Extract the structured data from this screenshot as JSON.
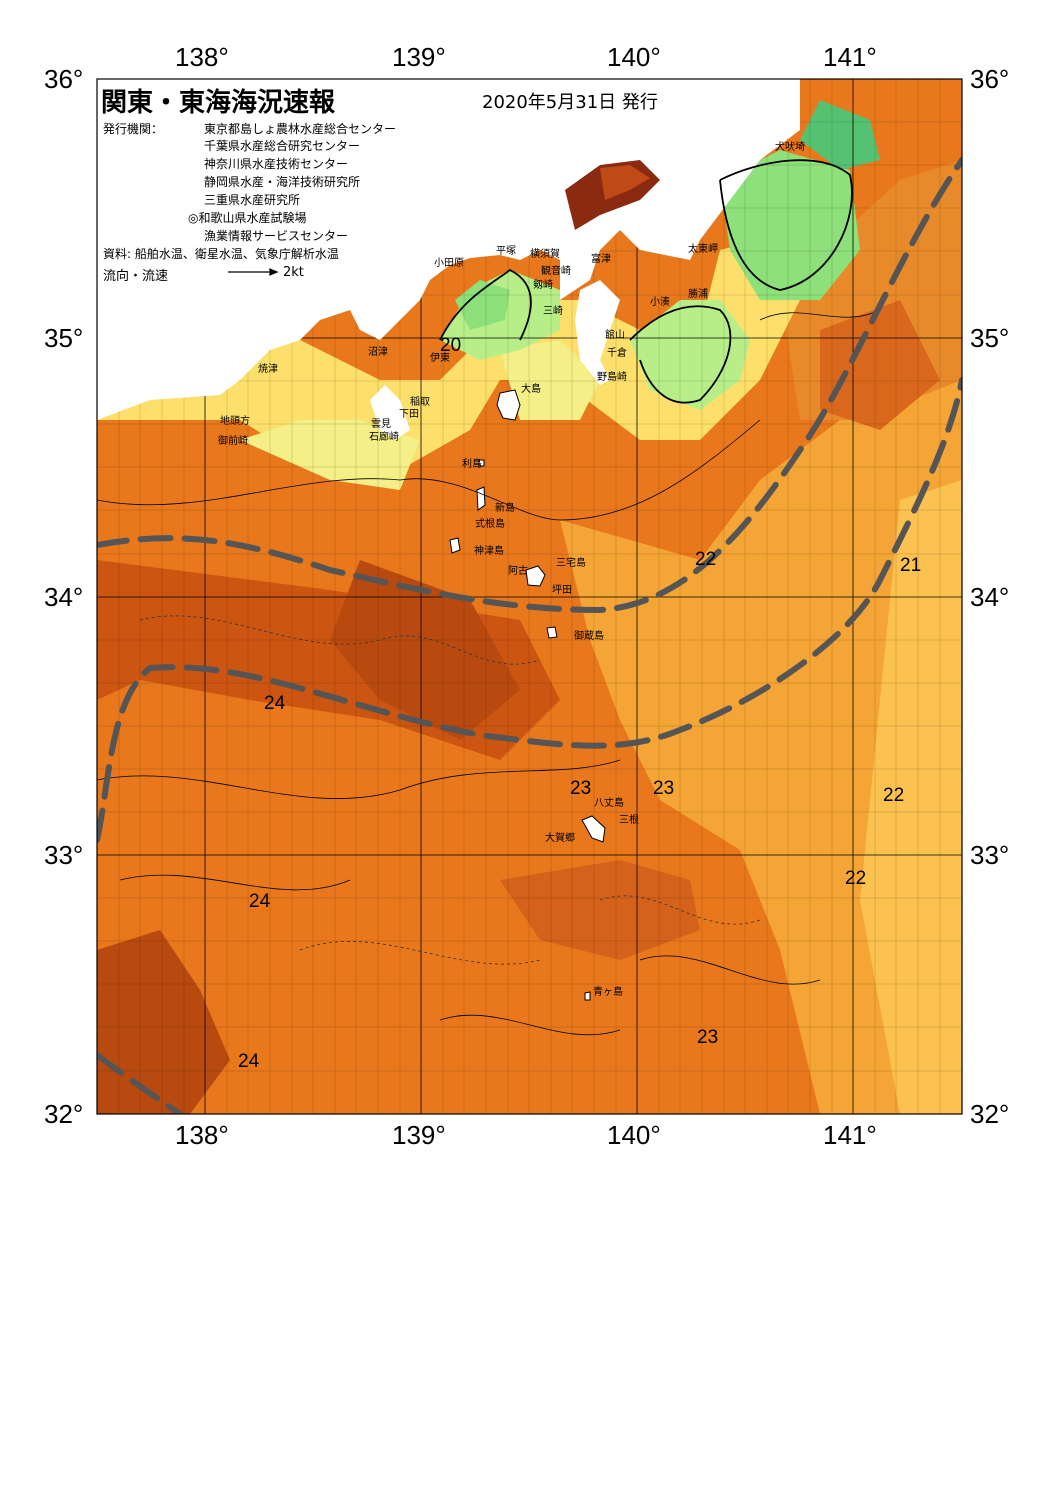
{
  "header": {
    "title": "関東・東海海況速報",
    "issue_date": "2020年5月31日 発行",
    "agency_label": "発行機関：",
    "agencies": [
      "東京都島しょ農林水産総合センター",
      "千葉県水産総合研究センター",
      "神奈川県水産技術センター",
      "静岡県水産・海洋技術研究所",
      "三重県水産研究所",
      "◎和歌山県水産試験場",
      "漁業情報サービスセンター"
    ],
    "source": "資料: 船舶水温、衛星水温、気象庁解析水温",
    "flow_label": "流向・流速",
    "flow_scale": "2kt"
  },
  "axes": {
    "lon_top": [
      "138°",
      "139°",
      "140°",
      "141°"
    ],
    "lon_bottom": [
      "138°",
      "139°",
      "140°",
      "141°"
    ],
    "lat_left": [
      "36°",
      "35°",
      "34°",
      "33°",
      "32°"
    ],
    "lat_right": [
      "36°",
      "35°",
      "34°",
      "33°",
      "32°"
    ]
  },
  "places": [
    "犬吠埼",
    "太東岬",
    "勝浦",
    "小湊",
    "富津",
    "館山",
    "千倉",
    "野島崎",
    "平塚",
    "横須賀",
    "観音崎",
    "剱崎",
    "三崎",
    "小田原",
    "沼津",
    "伊東",
    "焼津",
    "稲取",
    "下田",
    "雲見",
    "石廊崎",
    "地頭方",
    "御前崎",
    "大島",
    "利島",
    "新島",
    "式根島",
    "神津島",
    "三宅島",
    "阿古",
    "坪田",
    "御蔵島",
    "八丈島",
    "三根",
    "大賀郷",
    "青ヶ島"
  ],
  "isotherms": [
    "22",
    "21",
    "24",
    "23",
    "23",
    "22",
    "24",
    "22",
    "24",
    "23",
    "20"
  ],
  "colors": {
    "t24": "#cc5512",
    "t23": "#e8781b",
    "t22": "#f5a535",
    "t21": "#fbc24f",
    "t20": "#fde06b",
    "t19": "#f4ef86",
    "t18": "#b8ee88",
    "t17": "#8ee07a",
    "t16": "#55c272",
    "kuroshio_line": "#555555"
  }
}
